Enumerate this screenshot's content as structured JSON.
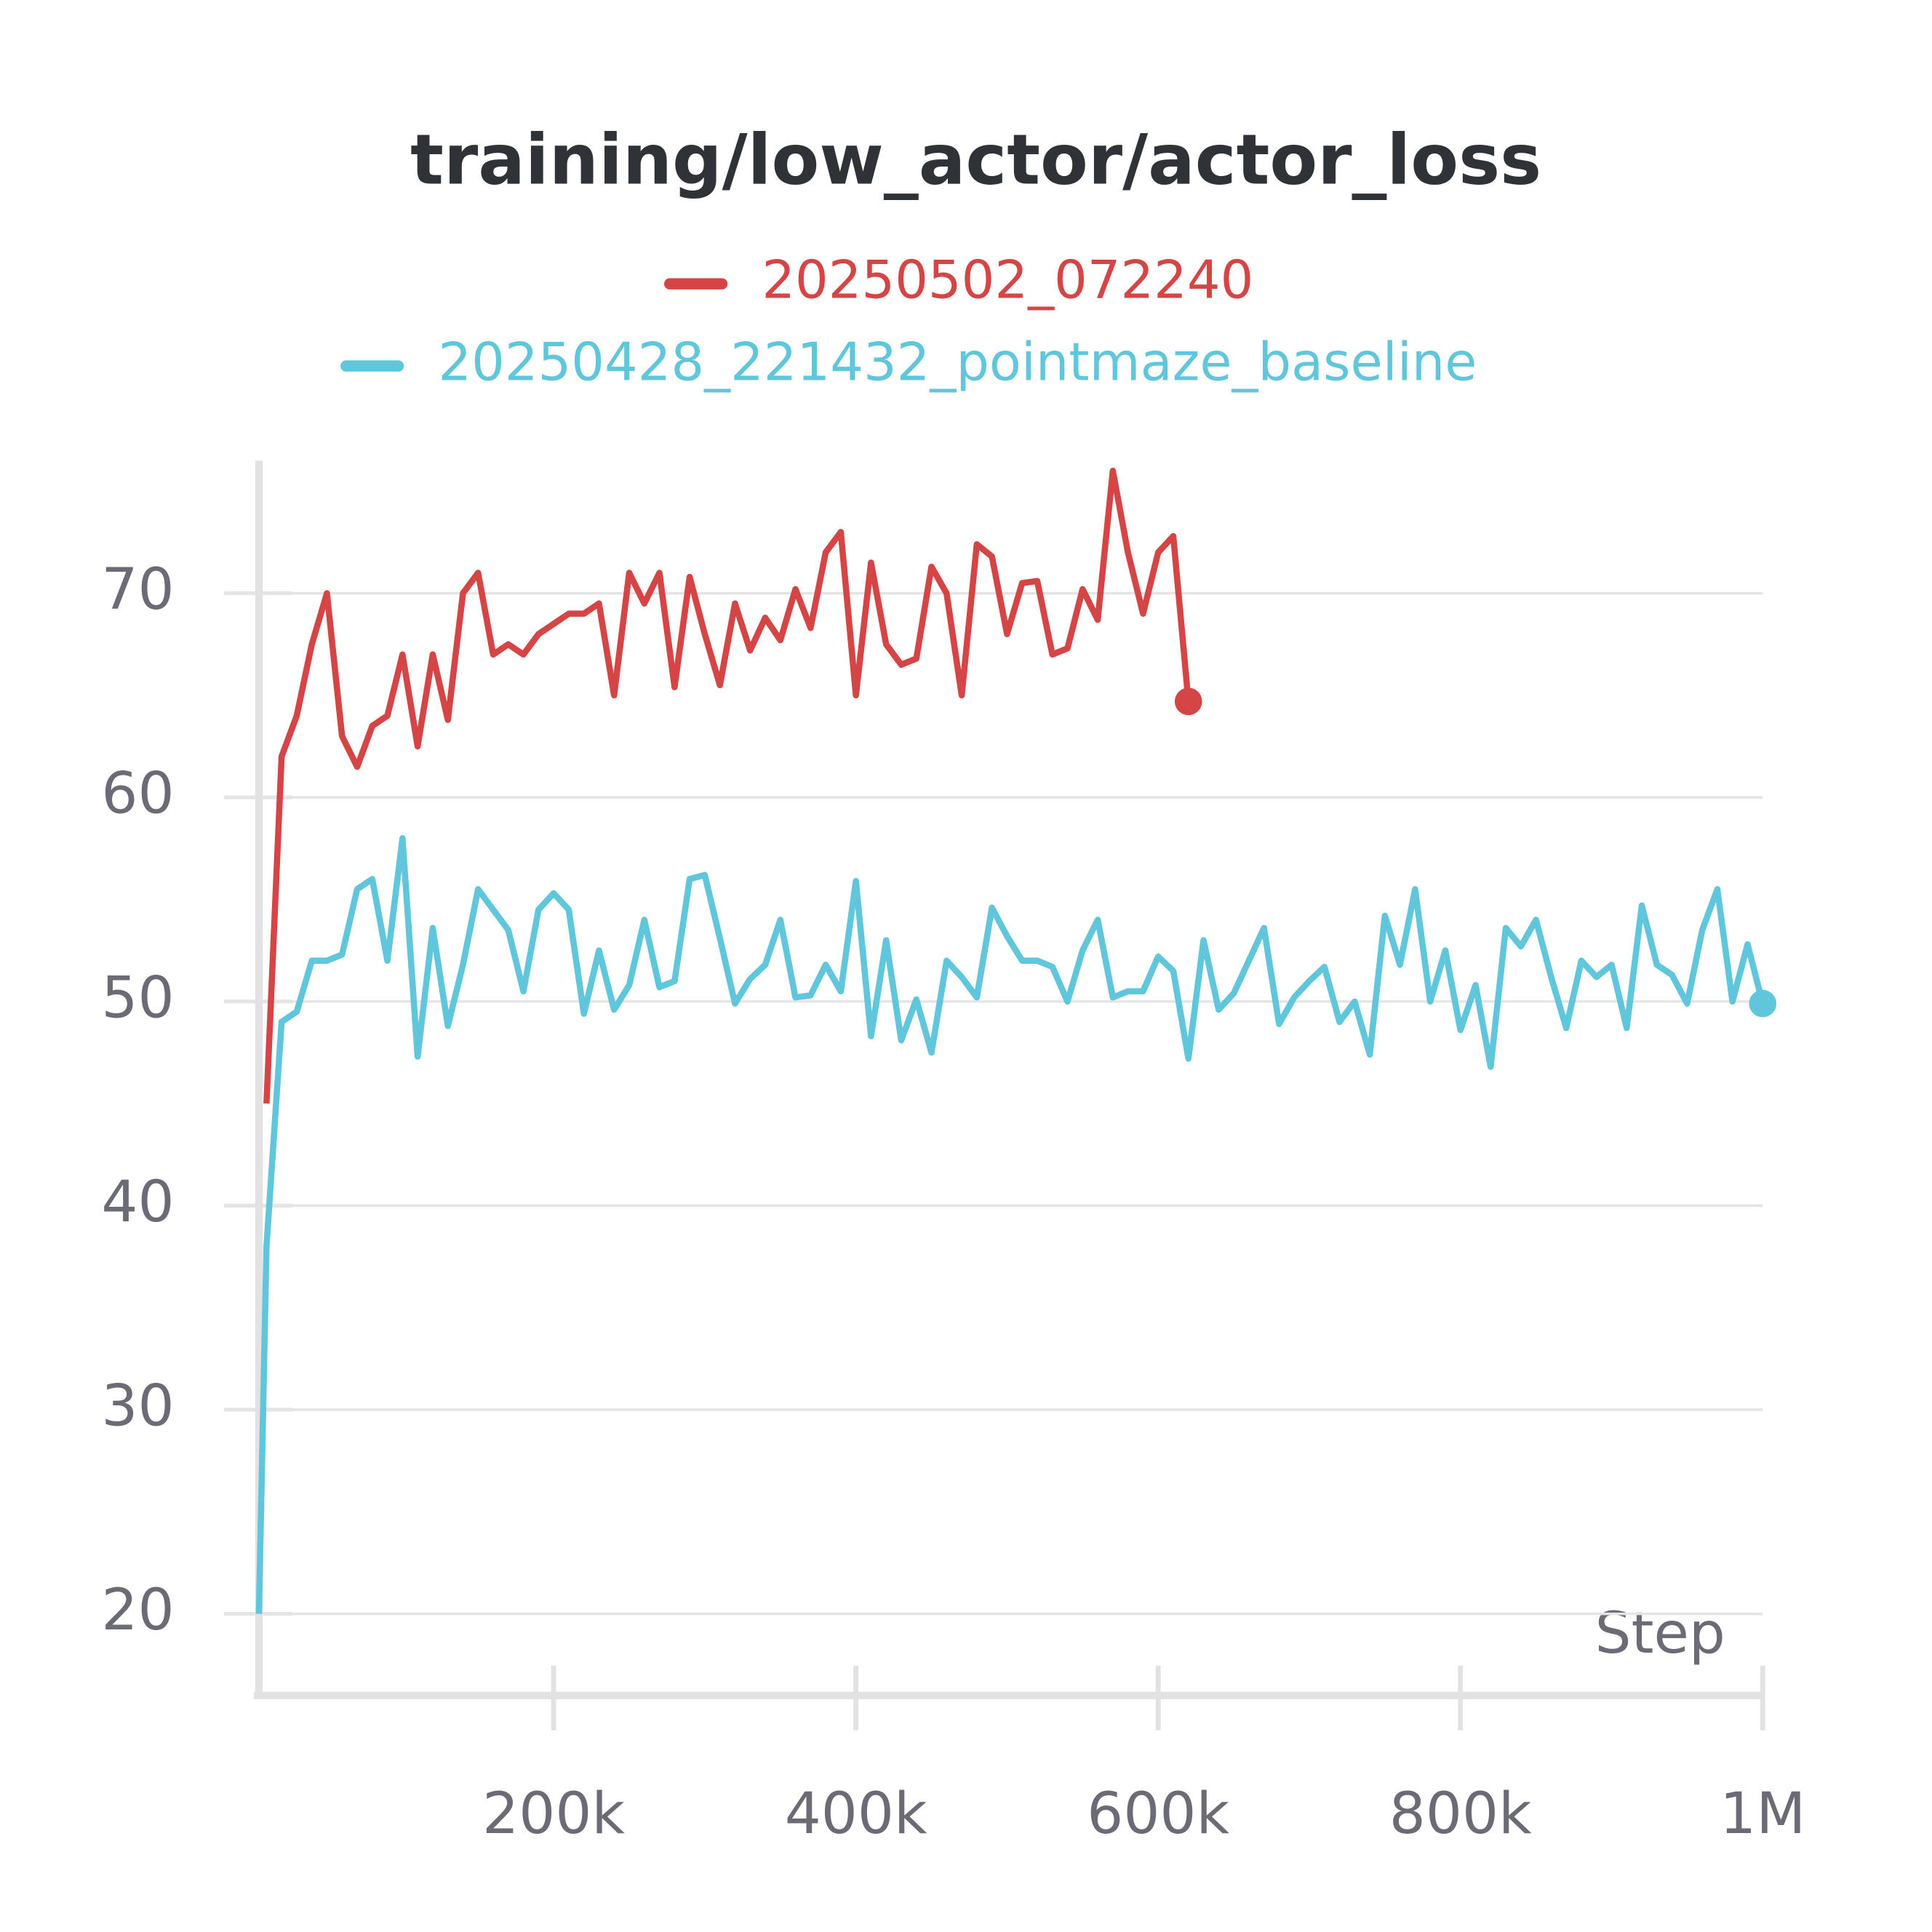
{
  "chart_data": {
    "type": "line",
    "title": "training/low_actor/actor_loss",
    "x_label": "Step",
    "xlim": [
      5000,
      1000000
    ],
    "ylim": [
      16,
      76.5
    ],
    "xticks": [
      {
        "value": 200000,
        "label": "200k"
      },
      {
        "value": 400000,
        "label": "400k"
      },
      {
        "value": 600000,
        "label": "600k"
      },
      {
        "value": 800000,
        "label": "800k"
      },
      {
        "value": 1000000,
        "label": "1M"
      }
    ],
    "yticks": [
      20,
      30,
      40,
      50,
      60,
      70
    ],
    "grid": true,
    "series": [
      {
        "name": "20250502_072240",
        "color": "#d64545",
        "x": [
          10000,
          20000,
          30000,
          40000,
          50000,
          60000,
          70000,
          80000,
          90000,
          100000,
          110000,
          120000,
          130000,
          140000,
          150000,
          160000,
          170000,
          180000,
          190000,
          200000,
          210000,
          220000,
          230000,
          240000,
          250000,
          260000,
          270000,
          280000,
          290000,
          300000,
          310000,
          320000,
          330000,
          340000,
          350000,
          360000,
          370000,
          380000,
          390000,
          400000,
          410000,
          420000,
          430000,
          440000,
          450000,
          460000,
          470000,
          480000,
          490000,
          500000,
          510000,
          520000,
          530000,
          540000,
          550000,
          560000,
          570000,
          580000,
          590000,
          600000,
          610000,
          620000
        ],
        "values": [
          45,
          62,
          64,
          67.5,
          70,
          63,
          61.5,
          63.5,
          64,
          67,
          62.5,
          67,
          63.8,
          70,
          71,
          67,
          67.5,
          67,
          68,
          68.5,
          69,
          69,
          69.5,
          65,
          71,
          69.5,
          71,
          65.4,
          70.8,
          68,
          65.5,
          69.5,
          67.2,
          68.8,
          67.7,
          70.2,
          68.3,
          72,
          73,
          65,
          71.5,
          67.5,
          66.5,
          66.8,
          71.3,
          70,
          65,
          72.4,
          71.8,
          68,
          70.5,
          70.6,
          67,
          67.3,
          70.2,
          68.7,
          76,
          72,
          69,
          72,
          72.8,
          64.7
        ]
      },
      {
        "name": "20250428_221432_pointmaze_baseline",
        "color": "#5fc6db",
        "x": [
          5000,
          10000,
          20000,
          30000,
          40000,
          50000,
          60000,
          70000,
          80000,
          90000,
          100000,
          110000,
          120000,
          130000,
          140000,
          150000,
          160000,
          170000,
          180000,
          190000,
          200000,
          210000,
          220000,
          230000,
          240000,
          250000,
          260000,
          270000,
          280000,
          290000,
          300000,
          310000,
          320000,
          330000,
          340000,
          350000,
          360000,
          370000,
          380000,
          390000,
          400000,
          410000,
          420000,
          430000,
          440000,
          450000,
          460000,
          470000,
          480000,
          490000,
          500000,
          510000,
          520000,
          530000,
          540000,
          550000,
          560000,
          570000,
          580000,
          590000,
          600000,
          610000,
          620000,
          630000,
          640000,
          650000,
          660000,
          670000,
          680000,
          690000,
          700000,
          710000,
          720000,
          730000,
          740000,
          750000,
          760000,
          770000,
          780000,
          790000,
          800000,
          810000,
          820000,
          830000,
          840000,
          850000,
          860000,
          870000,
          880000,
          890000,
          900000,
          910000,
          920000,
          930000,
          940000,
          950000,
          960000,
          970000,
          980000,
          990000,
          1000000
        ],
        "values": [
          20,
          38,
          49,
          49.5,
          52,
          52,
          52.3,
          55.5,
          56,
          52,
          58,
          47.3,
          53.6,
          48.8,
          51.8,
          55.5,
          54.5,
          53.5,
          50.5,
          54.5,
          55.3,
          54.5,
          49.4,
          52.5,
          49.6,
          50.8,
          54,
          50.7,
          51,
          56,
          56.2,
          53.1,
          49.9,
          51.1,
          51.8,
          54,
          50.2,
          50.3,
          51.8,
          50.5,
          55.9,
          48.3,
          53,
          48.1,
          50.1,
          47.5,
          52,
          51.2,
          50.2,
          54.6,
          53.2,
          52,
          52,
          51.7,
          50,
          52.5,
          54,
          50.2,
          50.5,
          50.5,
          52.2,
          51.5,
          47.2,
          53,
          49.6,
          50.4,
          52,
          53.6,
          48.9,
          50.2,
          51,
          51.7,
          49,
          50,
          47.4,
          54.2,
          51.8,
          55.5,
          50,
          52.5,
          48.6,
          50.8,
          46.8,
          53.6,
          52.7,
          54,
          51.2,
          48.7,
          52,
          51.2,
          51.8,
          48.7,
          54.7,
          51.8,
          51.3,
          49.9,
          53.5,
          55.5,
          50,
          52.8,
          49.9
        ]
      }
    ]
  }
}
